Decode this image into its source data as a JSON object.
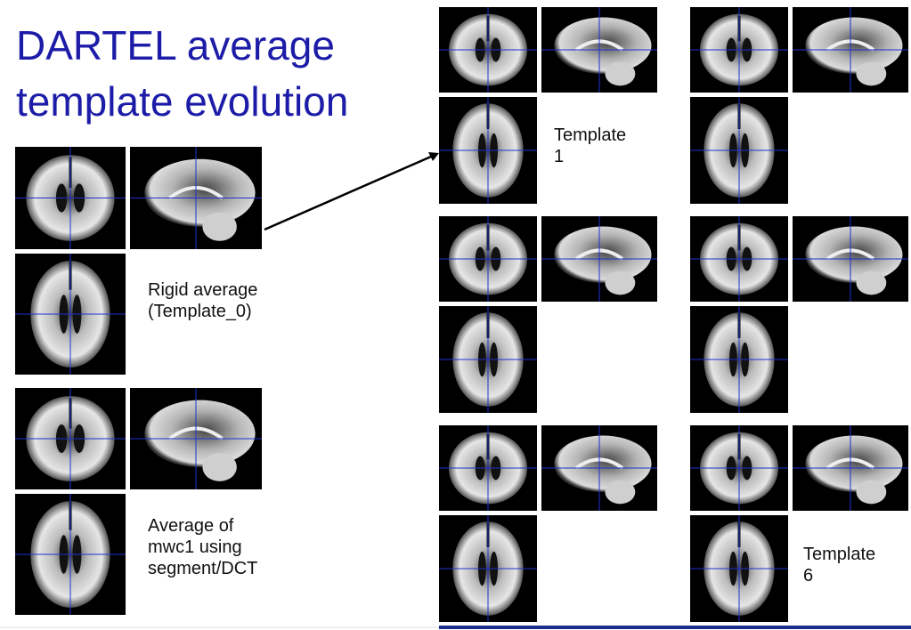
{
  "title": {
    "lines": [
      "DARTEL average",
      "template evolution"
    ]
  },
  "labels": {
    "rigid": {
      "lines": [
        "Rigid average",
        "(Template_0)"
      ]
    },
    "mwc1": {
      "lines": [
        "Average of",
        "mwc1 using",
        "segment/DCT"
      ]
    },
    "template_first": {
      "lines": [
        "Template",
        "1"
      ]
    },
    "template_last": {
      "lines": [
        "Template",
        "6"
      ]
    }
  }
}
